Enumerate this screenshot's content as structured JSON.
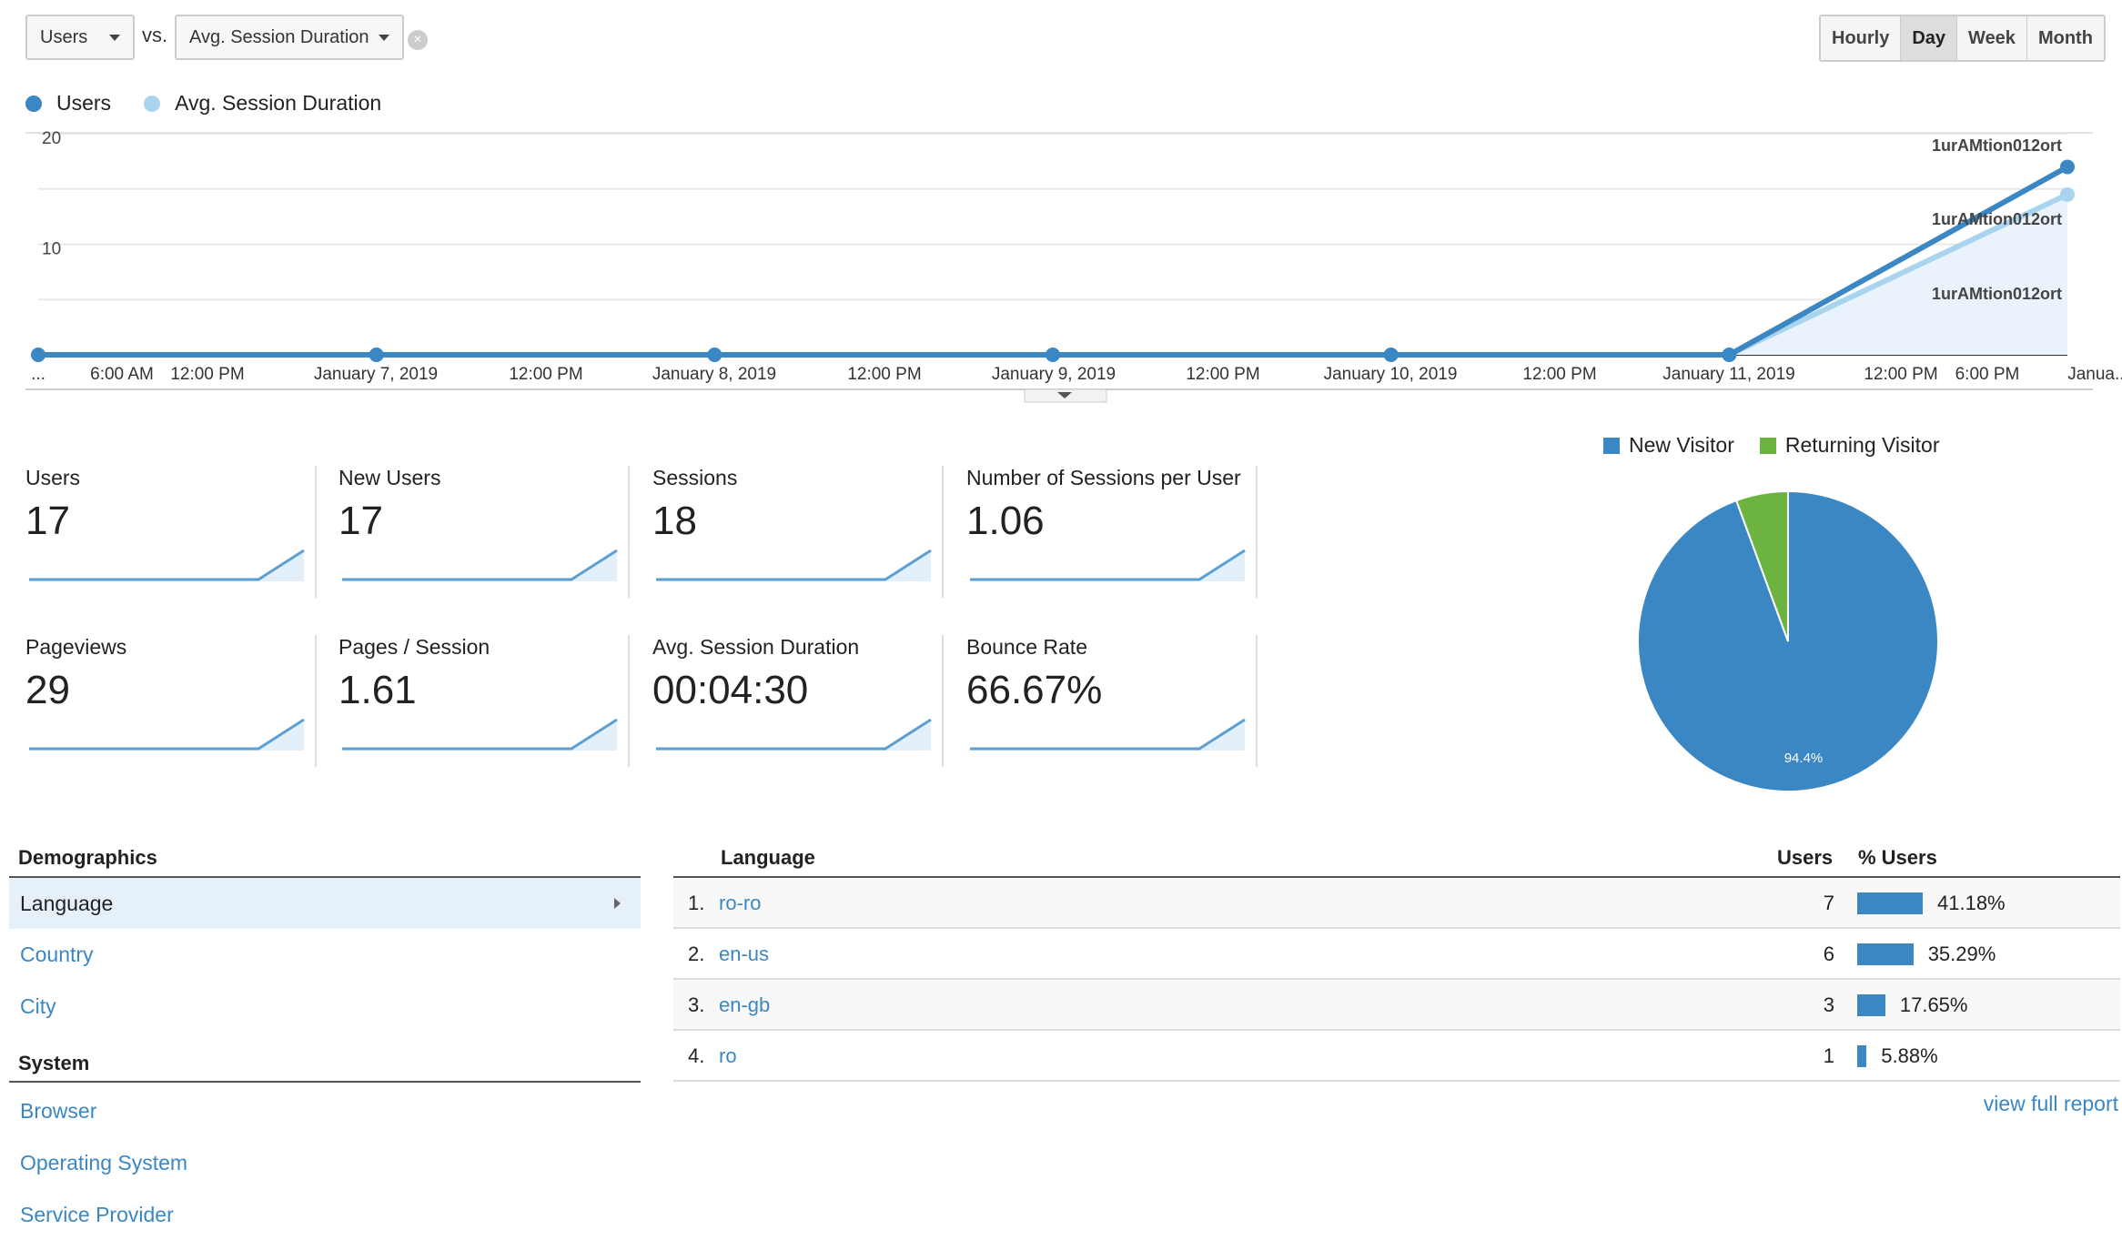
{
  "controls": {
    "metric1": "Users",
    "vs": "vs.",
    "metric2": "Avg. Session Duration",
    "clear_icon": "close-circle-icon",
    "granularity": [
      {
        "label": "Hourly",
        "active": false
      },
      {
        "label": "Day",
        "active": true
      },
      {
        "label": "Week",
        "active": false
      },
      {
        "label": "Month",
        "active": false
      }
    ]
  },
  "legend": [
    {
      "label": "Users",
      "color": "#3a87c4"
    },
    {
      "label": "Avg. Session Duration",
      "color": "#a9d4ef"
    }
  ],
  "chart_data": {
    "type": "line",
    "series": [
      {
        "name": "Users",
        "color": "#3a87c4",
        "values": [
          0,
          0,
          0,
          0,
          0,
          0,
          17
        ]
      },
      {
        "name": "Avg. Session Duration",
        "color": "#a9d4ef",
        "values": [
          0,
          0,
          0,
          0,
          0,
          0,
          14.5
        ]
      }
    ],
    "y_ticks": [
      "20",
      "10"
    ],
    "ylim": [
      0,
      20
    ],
    "x_tick_labels": [
      "...",
      "6:00 AM",
      "12:00 PM",
      "January 7, 2019",
      "12:00 PM",
      "January 8, 2019",
      "12:00 PM",
      "January 9, 2019",
      "12:00 PM",
      "January 10, 2019",
      "12:00 PM",
      "January 11, 2019",
      "12:00 PM",
      "6:00 PM",
      "Janua..."
    ],
    "annotations": [
      "1urAMtion012ort",
      "1urAMtion012ort",
      "1urAMtion012ort"
    ],
    "grid": true
  },
  "metrics": [
    {
      "label": "Users",
      "value": "17"
    },
    {
      "label": "New Users",
      "value": "17"
    },
    {
      "label": "Sessions",
      "value": "18"
    },
    {
      "label": "Number of Sessions per User",
      "value": "1.06"
    },
    {
      "label": "Pageviews",
      "value": "29"
    },
    {
      "label": "Pages / Session",
      "value": "1.61"
    },
    {
      "label": "Avg. Session Duration",
      "value": "00:04:30"
    },
    {
      "label": "Bounce Rate",
      "value": "66.67%"
    }
  ],
  "pie": {
    "legend": [
      {
        "label": "New Visitor",
        "color": "#3a87c4"
      },
      {
        "label": "Returning Visitor",
        "color": "#6db33f"
      }
    ],
    "slices": [
      {
        "label": "New Visitor",
        "value": 94.4,
        "color": "#3a87c4"
      },
      {
        "label": "Returning Visitor",
        "value": 5.6,
        "color": "#6db33f"
      }
    ],
    "slice_label": "94.4%"
  },
  "nav": {
    "demographics": "Demographics",
    "demographics_items": [
      "Language",
      "Country",
      "City"
    ],
    "system": "System",
    "system_items": [
      "Browser",
      "Operating System",
      "Service Provider"
    ]
  },
  "table": {
    "headers": {
      "language": "Language",
      "users": "Users",
      "pct": "% Users"
    },
    "rows": [
      {
        "idx": "1.",
        "lang": "ro-ro",
        "users": "7",
        "pct": "41.18%",
        "share": 41.18
      },
      {
        "idx": "2.",
        "lang": "en-us",
        "users": "6",
        "pct": "35.29%",
        "share": 35.29
      },
      {
        "idx": "3.",
        "lang": "en-gb",
        "users": "3",
        "pct": "17.65%",
        "share": 17.65
      },
      {
        "idx": "4.",
        "lang": "ro",
        "users": "1",
        "pct": "5.88%",
        "share": 5.88
      }
    ],
    "full_report": "view full report"
  }
}
